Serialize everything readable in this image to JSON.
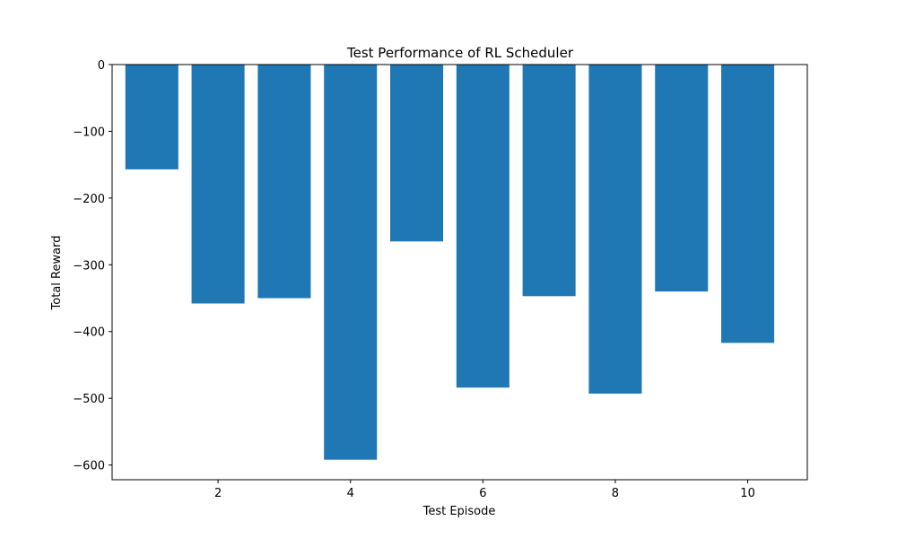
{
  "chart_data": {
    "type": "bar",
    "title": "Test Performance of RL Scheduler",
    "xlabel": "Test Episode",
    "ylabel": "Total Reward",
    "categories": [
      1,
      2,
      3,
      4,
      5,
      6,
      7,
      8,
      9,
      10
    ],
    "values": [
      -157,
      -358,
      -350,
      -592,
      -265,
      -484,
      -347,
      -493,
      -340,
      -417
    ],
    "xlim": [
      0.4,
      10.9
    ],
    "ylim": [
      -622,
      0
    ],
    "xticks": [
      2,
      4,
      6,
      8,
      10
    ],
    "yticks": [
      0,
      -100,
      -200,
      -300,
      -400,
      -500,
      -600
    ],
    "ytick_labels": [
      "0",
      "−100",
      "−200",
      "−300",
      "−400",
      "−500",
      "−600"
    ],
    "bar_width": 0.8,
    "bar_color": "#1f77b4",
    "grid": false,
    "legend": "none"
  }
}
